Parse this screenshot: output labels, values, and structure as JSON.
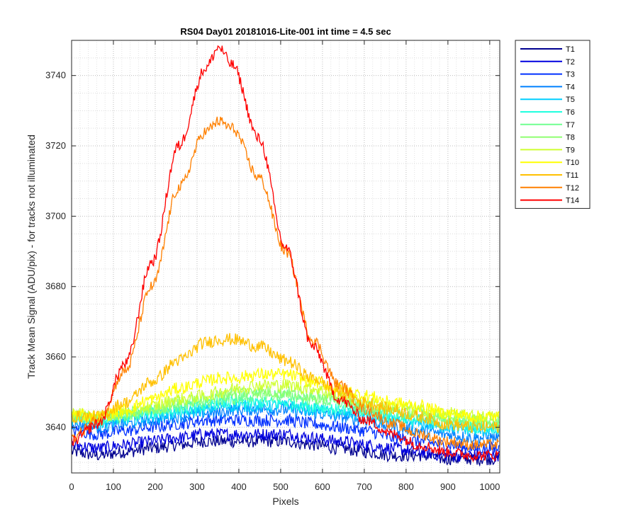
{
  "chart_data": {
    "type": "line",
    "title": "RS04 Day01 20181016-Lite-001 int time = 4.5 sec",
    "xlabel": "Pixels",
    "ylabel": "Track Mean Signal (ADU/pix) - for tracks not illuminated",
    "xlim": [
      0,
      1024
    ],
    "ylim": [
      3627,
      3750
    ],
    "xticks": [
      0,
      100,
      200,
      300,
      400,
      500,
      600,
      700,
      800,
      900,
      1000
    ],
    "yticks": [
      3640,
      3660,
      3680,
      3700,
      3720,
      3740
    ],
    "grid": "on (major dotted + minor dotted)",
    "legend_position": "outside-top-right",
    "x": [
      0,
      64,
      128,
      192,
      256,
      320,
      352,
      384,
      448,
      512,
      576,
      640,
      704,
      768,
      832,
      896,
      960,
      1023
    ],
    "series": [
      {
        "name": "T1",
        "color": "#00008f",
        "values": [
          3633,
          3632,
          3633,
          3634,
          3635,
          3636,
          3636,
          3636,
          3636,
          3636,
          3635,
          3634,
          3633,
          3632,
          3632,
          3631,
          3631,
          3631
        ]
      },
      {
        "name": "T2",
        "color": "#0000df",
        "values": [
          3635,
          3634,
          3635,
          3636,
          3637,
          3638,
          3638,
          3638,
          3638,
          3638,
          3637,
          3636,
          3635,
          3634,
          3633,
          3632,
          3632,
          3632
        ]
      },
      {
        "name": "T3",
        "color": "#0030ff",
        "values": [
          3639,
          3638,
          3639,
          3640,
          3641,
          3642,
          3642,
          3642,
          3642,
          3642,
          3641,
          3640,
          3639,
          3637,
          3636,
          3635,
          3634,
          3634
        ]
      },
      {
        "name": "T4",
        "color": "#0080ff",
        "values": [
          3641,
          3640,
          3641,
          3642,
          3643,
          3644,
          3644,
          3645,
          3645,
          3645,
          3644,
          3643,
          3642,
          3640,
          3639,
          3638,
          3637,
          3637
        ]
      },
      {
        "name": "T5",
        "color": "#00cfff",
        "values": [
          3642,
          3641,
          3642,
          3643,
          3644,
          3645,
          3646,
          3646,
          3646,
          3646,
          3645,
          3644,
          3643,
          3642,
          3641,
          3640,
          3639,
          3639
        ]
      },
      {
        "name": "T6",
        "color": "#20ffdf",
        "values": [
          3643,
          3642,
          3643,
          3644,
          3645,
          3646,
          3647,
          3647,
          3647,
          3647,
          3646,
          3645,
          3644,
          3643,
          3642,
          3641,
          3640,
          3640
        ]
      },
      {
        "name": "T7",
        "color": "#70ff8f",
        "values": [
          3643,
          3642,
          3643,
          3645,
          3646,
          3647,
          3648,
          3648,
          3649,
          3649,
          3648,
          3647,
          3645,
          3644,
          3643,
          3642,
          3641,
          3641
        ]
      },
      {
        "name": "T8",
        "color": "#8fff70",
        "values": [
          3643,
          3643,
          3644,
          3645,
          3647,
          3648,
          3649,
          3650,
          3650,
          3650,
          3649,
          3648,
          3646,
          3645,
          3644,
          3643,
          3642,
          3642
        ]
      },
      {
        "name": "T9",
        "color": "#cfff30",
        "values": [
          3644,
          3643,
          3644,
          3646,
          3648,
          3649,
          3650,
          3651,
          3652,
          3652,
          3651,
          3649,
          3647,
          3646,
          3645,
          3644,
          3643,
          3643
        ]
      },
      {
        "name": "T10",
        "color": "#ffff00",
        "values": [
          3644,
          3643,
          3645,
          3648,
          3651,
          3653,
          3654,
          3654,
          3655,
          3655,
          3653,
          3651,
          3649,
          3647,
          3646,
          3644,
          3643,
          3643
        ]
      },
      {
        "name": "T11",
        "color": "#ffc000",
        "values": [
          3643,
          3643,
          3647,
          3653,
          3659,
          3664,
          3665,
          3665,
          3663,
          3659,
          3654,
          3650,
          3647,
          3645,
          3643,
          3641,
          3640,
          3640
        ]
      },
      {
        "name": "T12",
        "color": "#ff8000",
        "values": [
          3637,
          3642,
          3656,
          3680,
          3708,
          3724,
          3727,
          3725,
          3711,
          3690,
          3665,
          3652,
          3645,
          3641,
          3638,
          3636,
          3635,
          3635
        ]
      },
      {
        "name": "T14",
        "color": "#ff0000",
        "values": [
          3636,
          3641,
          3658,
          3687,
          3720,
          3742,
          3748,
          3743,
          3722,
          3691,
          3663,
          3648,
          3642,
          3638,
          3635,
          3633,
          3632,
          3632
        ]
      }
    ]
  }
}
